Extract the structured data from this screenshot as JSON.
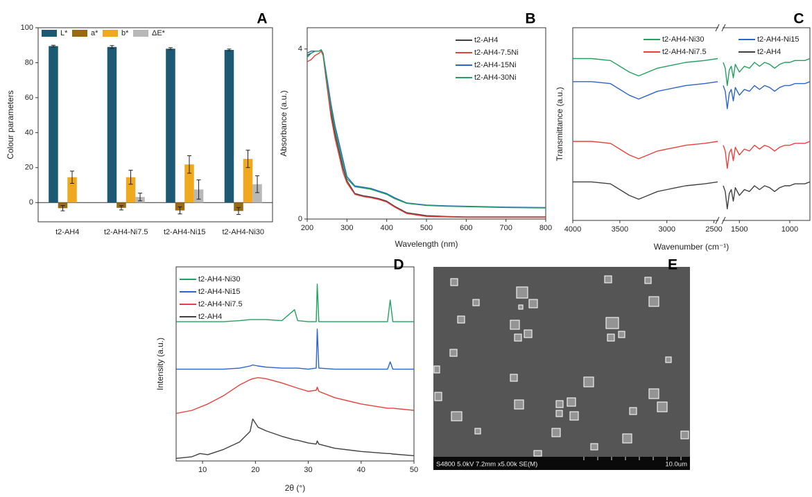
{
  "chart_data": [
    {
      "type": "bar",
      "panel": "A",
      "ylabel": "Colour parameters",
      "categories": [
        "t2-AH4",
        "t2-AH4-Ni7.5",
        "t2-AH4-Ni15",
        "t2-AH4-Ni30"
      ],
      "series": [
        {
          "name": "L*",
          "color": "#1b5a72",
          "values": [
            89.5,
            89,
            88,
            87.3
          ],
          "errors": [
            0.5,
            0.8,
            0.6,
            0.5
          ]
        },
        {
          "name": "a*",
          "color": "#9a6a12",
          "values": [
            -3.2,
            -3,
            -4.5,
            -4.8
          ],
          "errors": [
            1.5,
            1.2,
            2,
            2
          ]
        },
        {
          "name": "b*",
          "color": "#f0a81e",
          "values": [
            14.5,
            14.5,
            21.8,
            25
          ],
          "errors": [
            3.5,
            4,
            5,
            5
          ]
        },
        {
          "name": "ΔE*",
          "color": "#b8b8b8",
          "values": [
            null,
            3.2,
            7.5,
            10.5
          ],
          "errors": [
            null,
            2.2,
            5.5,
            4.8
          ]
        }
      ],
      "ylim": [
        -11,
        100
      ],
      "yticks": [
        0,
        20,
        40,
        60,
        80,
        100
      ],
      "legend": "upper left"
    },
    {
      "type": "line",
      "panel": "B",
      "xlabel": "Wavelength (nm)",
      "ylabel": "Absorbance (a.u.)",
      "x": [
        200,
        210,
        220,
        230,
        235,
        240,
        250,
        260,
        270,
        280,
        290,
        300,
        320,
        340,
        360,
        380,
        400,
        420,
        450,
        500,
        550,
        600,
        700,
        800
      ],
      "series": [
        {
          "name": "t2-AH4",
          "color": "#404040",
          "values": [
            3.85,
            3.9,
            3.95,
            3.95,
            3.98,
            3.9,
            3.2,
            2.5,
            2.0,
            1.6,
            1.2,
            0.9,
            0.6,
            0.55,
            0.52,
            0.48,
            0.42,
            0.3,
            0.15,
            0.08,
            0.06,
            0.05,
            0.05,
            0.05
          ]
        },
        {
          "name": "t2-AH4-7.5Ni",
          "color": "#e8413c",
          "values": [
            3.7,
            3.75,
            3.85,
            3.9,
            3.95,
            3.85,
            3.1,
            2.4,
            1.9,
            1.5,
            1.1,
            0.85,
            0.58,
            0.53,
            0.5,
            0.46,
            0.4,
            0.28,
            0.13,
            0.06,
            0.05,
            0.04,
            0.04,
            0.04
          ]
        },
        {
          "name": "t2-AH4-15Ni",
          "color": "#2a64cc",
          "values": [
            3.9,
            3.95,
            3.95,
            3.95,
            3.98,
            3.9,
            3.3,
            2.7,
            2.2,
            1.8,
            1.4,
            1.0,
            0.78,
            0.75,
            0.72,
            0.66,
            0.6,
            0.5,
            0.38,
            0.33,
            0.31,
            0.3,
            0.28,
            0.27
          ]
        },
        {
          "name": "t2-AH4-30Ni",
          "color": "#22a05e",
          "values": [
            3.8,
            3.9,
            3.95,
            3.95,
            3.98,
            3.9,
            3.2,
            2.6,
            2.1,
            1.7,
            1.3,
            0.95,
            0.76,
            0.73,
            0.7,
            0.64,
            0.58,
            0.48,
            0.37,
            0.32,
            0.3,
            0.29,
            0.27,
            0.26
          ]
        }
      ],
      "xlim": [
        200,
        800
      ],
      "xticks": [
        200,
        300,
        400,
        500,
        600,
        700,
        800
      ],
      "ylim": [
        0,
        4.5
      ],
      "yticks": [
        0,
        4
      ],
      "legend": "upper right"
    },
    {
      "type": "line",
      "panel": "C",
      "xlabel": "Wavenumber (cm⁻¹)",
      "ylabel": "Transmittance (a.u.)",
      "x": [
        4000,
        3800,
        3600,
        3500,
        3400,
        3300,
        3200,
        3100,
        3000,
        2900,
        2800,
        2600,
        2460,
        1660,
        1640,
        1620,
        1600,
        1580,
        1560,
        1540,
        1520,
        1500,
        1450,
        1400,
        1350,
        1300,
        1250,
        1200,
        1150,
        1100,
        1050,
        1000,
        950,
        900,
        850,
        800
      ],
      "series": [
        {
          "name": "t2-AH4-Ni30",
          "color": "#22a05e",
          "values": [
            84,
            84,
            83,
            80,
            77,
            75,
            77,
            79,
            80,
            81,
            82,
            83,
            84,
            82,
            79,
            70,
            78,
            80,
            74,
            81,
            79,
            77,
            80,
            79,
            82,
            80,
            82,
            81,
            79,
            81,
            82,
            82,
            83,
            83,
            83,
            84
          ]
        },
        {
          "name": "t2-AH4-Ni15",
          "color": "#2a64cc",
          "values": [
            72,
            72,
            71,
            68,
            65,
            63,
            65,
            67,
            68,
            69,
            70,
            71,
            72,
            70,
            67,
            58,
            66,
            68,
            62,
            69,
            67,
            65,
            68,
            67,
            70,
            68,
            70,
            69,
            67,
            69,
            70,
            70,
            71,
            71,
            71,
            72
          ]
        },
        {
          "name": "t2-AH4-Ni7.5",
          "color": "#e8413c",
          "values": [
            41,
            41,
            40,
            37,
            34,
            32,
            34,
            36,
            37,
            38,
            39,
            40,
            41,
            39,
            36,
            27,
            35,
            37,
            31,
            38,
            36,
            34,
            37,
            36,
            39,
            37,
            39,
            38,
            36,
            38,
            39,
            39,
            40,
            40,
            40,
            41
          ]
        },
        {
          "name": "t2-AH4",
          "color": "#404040",
          "values": [
            20,
            20,
            19,
            16,
            13,
            11,
            13,
            15,
            16,
            17,
            18,
            19,
            20,
            18,
            15,
            6,
            14,
            16,
            10,
            17,
            15,
            13,
            16,
            15,
            18,
            16,
            18,
            17,
            15,
            17,
            18,
            18,
            19,
            19,
            19,
            20
          ]
        }
      ],
      "xlim": [
        4000,
        800
      ],
      "x_break": [
        2460,
        1660
      ],
      "xticks": [
        4000,
        3500,
        3000,
        2500,
        1500,
        1000
      ],
      "ylim": [
        0,
        100
      ],
      "legend": "upper right",
      "legend_columns": 2
    },
    {
      "type": "line",
      "panel": "D",
      "xlabel": "2θ (°)",
      "ylabel": "Intensity (a.u.)",
      "x": [
        5,
        8,
        9.5,
        11,
        14,
        17,
        19,
        19.5,
        20.5,
        22,
        25,
        27.4,
        28,
        30,
        31.5,
        31.7,
        32,
        35,
        40,
        45,
        45.5,
        46,
        50
      ],
      "series": [
        {
          "name": "t2-AH4-Ni30",
          "color": "#22a05e",
          "values": [
            74,
            74,
            74,
            74,
            74,
            74.5,
            75,
            75,
            75,
            75,
            74.5,
            79.7,
            74.5,
            74,
            74,
            91.8,
            74,
            74,
            74,
            74,
            84.3,
            74,
            74
          ]
        },
        {
          "name": "t2-AH4-Ni15",
          "color": "#2a64cc",
          "values": [
            51.5,
            51.5,
            51.5,
            51.5,
            51.5,
            52,
            53,
            53.5,
            53,
            52.5,
            52,
            52,
            52,
            51.5,
            52,
            70.5,
            52,
            51.5,
            51.5,
            51.5,
            55,
            51.5,
            51.5
          ]
        },
        {
          "name": "t2-AH4-Ni7.5",
          "color": "#e8413c",
          "values": [
            30.5,
            32,
            33.5,
            35,
            39,
            44,
            46.5,
            47,
            47.5,
            47,
            45,
            43,
            42.5,
            41,
            41.5,
            43,
            41,
            38,
            35,
            33,
            33,
            33,
            32
          ]
        },
        {
          "name": "t2-AH4",
          "color": "#404040",
          "values": [
            9.2,
            10,
            11.5,
            11,
            13.5,
            17,
            22,
            27.9,
            24,
            22.3,
            19.7,
            18,
            17.8,
            16.5,
            16,
            17.5,
            16,
            14,
            12.5,
            11.5,
            11.5,
            11.3,
            10.5
          ]
        }
      ],
      "xlim": [
        5,
        50
      ],
      "xticks": [
        10,
        20,
        30,
        40,
        50
      ],
      "ylim": [
        8,
        100
      ],
      "legend": "upper left"
    }
  ],
  "sem_image": {
    "panel": "E",
    "caption": "S4800 5.0kV 7.2mm x5.00k SE(M)",
    "scale_bar": "10.0um"
  }
}
